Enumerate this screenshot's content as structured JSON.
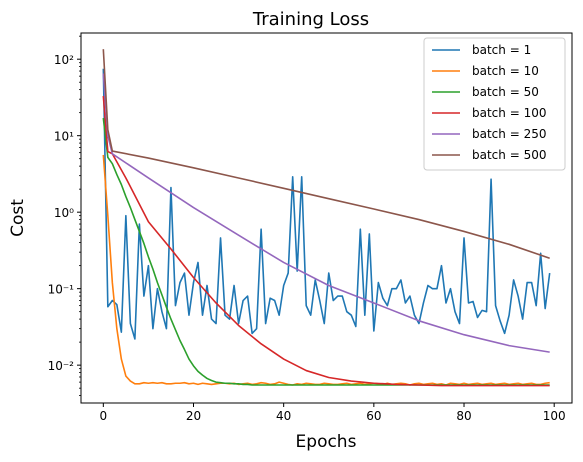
{
  "chart_data": {
    "type": "line",
    "title": "Training Loss",
    "xlabel": "Epochs",
    "ylabel": "Cost",
    "xlim": [
      -4.95,
      103.95
    ],
    "ylim": [
      0.0032,
      220
    ],
    "yscale": "log",
    "grid": false,
    "legend_position": "top-right",
    "x_ticks": [
      0,
      20,
      40,
      60,
      80,
      100
    ],
    "x_tick_labels": [
      "0",
      "20",
      "40",
      "60",
      "80",
      "100"
    ],
    "y_ticks": [
      0.01,
      0.1,
      1,
      10,
      100
    ],
    "y_tick_labels": [
      "10⁻²",
      "10⁻¹",
      "10⁰",
      "10¹",
      "10²"
    ],
    "series": [
      {
        "name": "batch = 1",
        "color": "#1f77b4",
        "x": [
          0,
          1,
          2,
          3,
          4,
          5,
          6,
          7,
          8,
          9,
          10,
          11,
          12,
          13,
          14,
          15,
          16,
          17,
          18,
          19,
          20,
          21,
          22,
          23,
          24,
          25,
          26,
          27,
          28,
          29,
          30,
          31,
          32,
          33,
          34,
          35,
          36,
          37,
          38,
          39,
          40,
          41,
          42,
          43,
          44,
          45,
          46,
          47,
          48,
          49,
          50,
          51,
          52,
          53,
          54,
          55,
          56,
          57,
          58,
          59,
          60,
          61,
          62,
          63,
          64,
          65,
          66,
          67,
          68,
          69,
          70,
          71,
          72,
          73,
          74,
          75,
          76,
          77,
          78,
          79,
          80,
          81,
          82,
          83,
          84,
          85,
          86,
          87,
          88,
          89,
          90,
          91,
          92,
          93,
          94,
          95,
          96,
          97,
          98,
          99
        ],
        "values": [
          75,
          0.058,
          0.07,
          0.062,
          0.027,
          0.9,
          0.035,
          0.022,
          0.7,
          0.08,
          0.2,
          0.03,
          0.1,
          0.05,
          0.03,
          2.1,
          0.06,
          0.12,
          0.16,
          0.045,
          0.12,
          0.22,
          0.045,
          0.11,
          0.04,
          0.035,
          0.46,
          0.045,
          0.04,
          0.11,
          0.035,
          0.07,
          0.08,
          0.026,
          0.03,
          0.6,
          0.035,
          0.075,
          0.07,
          0.045,
          0.11,
          0.16,
          2.9,
          0.17,
          2.9,
          0.06,
          0.045,
          0.13,
          0.07,
          0.035,
          0.16,
          0.07,
          0.08,
          0.08,
          0.05,
          0.045,
          0.032,
          0.6,
          0.045,
          0.52,
          0.028,
          0.12,
          0.075,
          0.06,
          0.1,
          0.1,
          0.13,
          0.065,
          0.08,
          0.045,
          0.035,
          0.065,
          0.11,
          0.1,
          0.1,
          0.2,
          0.065,
          0.1,
          0.05,
          0.035,
          0.46,
          0.065,
          0.068,
          0.042,
          0.052,
          0.05,
          2.7,
          0.06,
          0.038,
          0.026,
          0.045,
          0.13,
          0.08,
          0.04,
          0.12,
          0.12,
          0.06,
          0.29,
          0.055,
          0.16
        ]
      },
      {
        "name": "batch = 10",
        "color": "#ff7f0e",
        "x": [
          0,
          1,
          2,
          3,
          4,
          5,
          6,
          7,
          8,
          9,
          10,
          11,
          12,
          13,
          14,
          15,
          16,
          17,
          18,
          19,
          20,
          21,
          22,
          23,
          24,
          25,
          26,
          27,
          28,
          29,
          30,
          31,
          32,
          33,
          34,
          35,
          36,
          37,
          38,
          39,
          40,
          41,
          42,
          43,
          44,
          45,
          46,
          47,
          48,
          49,
          50,
          51,
          52,
          53,
          54,
          55,
          56,
          57,
          58,
          59,
          60,
          61,
          62,
          63,
          64,
          65,
          66,
          67,
          68,
          69,
          70,
          71,
          72,
          73,
          74,
          75,
          76,
          77,
          78,
          79,
          80,
          81,
          82,
          83,
          84,
          85,
          86,
          87,
          88,
          89,
          90,
          91,
          92,
          93,
          94,
          95,
          96,
          97,
          98,
          99
        ],
        "values": [
          5.6,
          0.9,
          0.12,
          0.03,
          0.012,
          0.0072,
          0.0062,
          0.0057,
          0.0057,
          0.0059,
          0.0058,
          0.0059,
          0.0058,
          0.0059,
          0.0057,
          0.0057,
          0.0058,
          0.0058,
          0.0059,
          0.0057,
          0.0058,
          0.0056,
          0.0058,
          0.0057,
          0.0056,
          0.0057,
          0.0058,
          0.0058,
          0.0057,
          0.0058,
          0.0056,
          0.0057,
          0.0058,
          0.0056,
          0.0057,
          0.0059,
          0.0058,
          0.0056,
          0.0057,
          0.006,
          0.0058,
          0.0056,
          0.0055,
          0.0057,
          0.0056,
          0.0058,
          0.0057,
          0.0056,
          0.0056,
          0.0058,
          0.0057,
          0.0056,
          0.0056,
          0.0057,
          0.0058,
          0.0056,
          0.0057,
          0.0058,
          0.0056,
          0.0057,
          0.0058,
          0.0057,
          0.0056,
          0.0058,
          0.0056,
          0.0057,
          0.0058,
          0.0057,
          0.0055,
          0.0057,
          0.0058,
          0.0056,
          0.0057,
          0.0058,
          0.0056,
          0.0057,
          0.0055,
          0.0058,
          0.0057,
          0.0056,
          0.0058,
          0.0056,
          0.0057,
          0.0058,
          0.0056,
          0.0057,
          0.0058,
          0.0056,
          0.0057,
          0.0058,
          0.0056,
          0.0057,
          0.0058,
          0.0056,
          0.0057,
          0.0058,
          0.0056,
          0.0056,
          0.0058,
          0.0059
        ]
      },
      {
        "name": "batch = 50",
        "color": "#2ca02c",
        "x": [
          0,
          1,
          2,
          3,
          4,
          5,
          6,
          7,
          8,
          9,
          10,
          11,
          12,
          13,
          14,
          15,
          16,
          17,
          18,
          19,
          20,
          21,
          22,
          23,
          24,
          25,
          26,
          27,
          28,
          29,
          30,
          31,
          32,
          33,
          34,
          35,
          36,
          37,
          38,
          39,
          40,
          45,
          50,
          55,
          60,
          65,
          70,
          75,
          80,
          85,
          90,
          95,
          99
        ],
        "values": [
          17,
          5.2,
          4.3,
          3.1,
          2.3,
          1.6,
          1.15,
          0.8,
          0.56,
          0.39,
          0.26,
          0.18,
          0.12,
          0.083,
          0.057,
          0.04,
          0.029,
          0.021,
          0.016,
          0.012,
          0.0098,
          0.0083,
          0.0074,
          0.0067,
          0.0063,
          0.006,
          0.0059,
          0.0058,
          0.0058,
          0.0057,
          0.0057,
          0.0056,
          0.0056,
          0.0055,
          0.0055,
          0.0055,
          0.0055,
          0.0055,
          0.0055,
          0.0055,
          0.0055,
          0.0055,
          0.0055,
          0.0055,
          0.0055,
          0.0055,
          0.0055,
          0.0055,
          0.0055,
          0.0055,
          0.0055,
          0.0055,
          0.0055
        ]
      },
      {
        "name": "batch = 100",
        "color": "#d62728",
        "x": [
          0,
          1,
          2,
          5,
          10,
          15,
          20,
          25,
          30,
          35,
          40,
          45,
          50,
          55,
          60,
          65,
          70,
          75,
          80,
          85,
          90,
          95,
          99
        ],
        "values": [
          33,
          6.2,
          5.8,
          2.8,
          0.75,
          0.33,
          0.14,
          0.065,
          0.033,
          0.019,
          0.012,
          0.0085,
          0.0069,
          0.0062,
          0.0058,
          0.0056,
          0.0055,
          0.0054,
          0.0054,
          0.0054,
          0.0054,
          0.0054,
          0.0054
        ]
      },
      {
        "name": "batch = 250",
        "color": "#9467bd",
        "x": [
          0,
          1,
          2,
          10,
          20,
          30,
          40,
          50,
          60,
          70,
          80,
          90,
          99
        ],
        "values": [
          65,
          10,
          5.8,
          2.8,
          1.15,
          0.5,
          0.22,
          0.11,
          0.065,
          0.038,
          0.025,
          0.018,
          0.0148
        ]
      },
      {
        "name": "batch = 500",
        "color": "#8c564b",
        "x": [
          0,
          1,
          2,
          10,
          20,
          30,
          40,
          50,
          60,
          70,
          80,
          90,
          99
        ],
        "values": [
          135,
          12,
          6.3,
          5.1,
          3.8,
          2.8,
          2.05,
          1.5,
          1.1,
          0.8,
          0.56,
          0.38,
          0.25
        ]
      }
    ]
  }
}
